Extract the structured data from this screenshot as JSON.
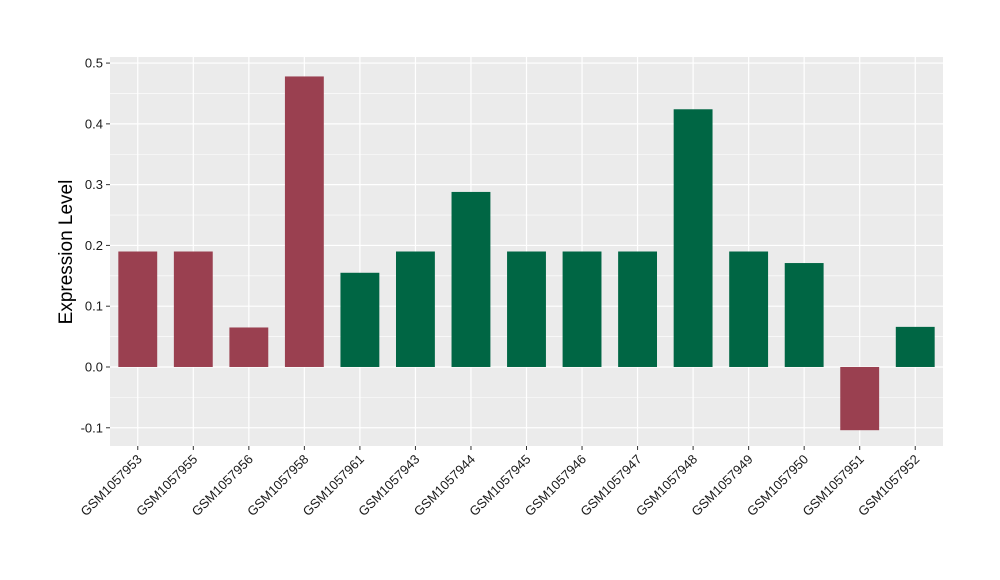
{
  "chart_data": {
    "type": "bar",
    "title": "",
    "xlabel": "",
    "ylabel": "Expression Level",
    "ylim": [
      -0.13,
      0.51
    ],
    "yticks": [
      -0.1,
      0.0,
      0.1,
      0.2,
      0.3,
      0.4,
      0.5
    ],
    "ytick_labels": [
      "-0.1",
      "0.0",
      "0.1",
      "0.2",
      "0.3",
      "0.4",
      "0.5"
    ],
    "grid": true,
    "legend": "none",
    "categories": [
      "GSM1057953",
      "GSM1057955",
      "GSM1057956",
      "GSM1057958",
      "GSM1057961",
      "GSM1057943",
      "GSM1057944",
      "GSM1057945",
      "GSM1057946",
      "GSM1057947",
      "GSM1057948",
      "GSM1057949",
      "GSM1057950",
      "GSM1057951",
      "GSM1057952"
    ],
    "values": [
      0.19,
      0.19,
      0.065,
      0.478,
      0.155,
      0.19,
      0.288,
      0.19,
      0.19,
      0.19,
      0.424,
      0.19,
      0.171,
      -0.104,
      0.066
    ],
    "bar_colors": [
      "#9a4050",
      "#9a4050",
      "#9a4050",
      "#9a4050",
      "#006644",
      "#006644",
      "#006644",
      "#006644",
      "#006644",
      "#006644",
      "#006644",
      "#006644",
      "#006644",
      "#9a4050",
      "#006644"
    ]
  },
  "colors": {
    "panel_background": "#ebebeb",
    "grid_line": "#ffffff",
    "group_a": "#9a4050",
    "group_b": "#006644"
  }
}
